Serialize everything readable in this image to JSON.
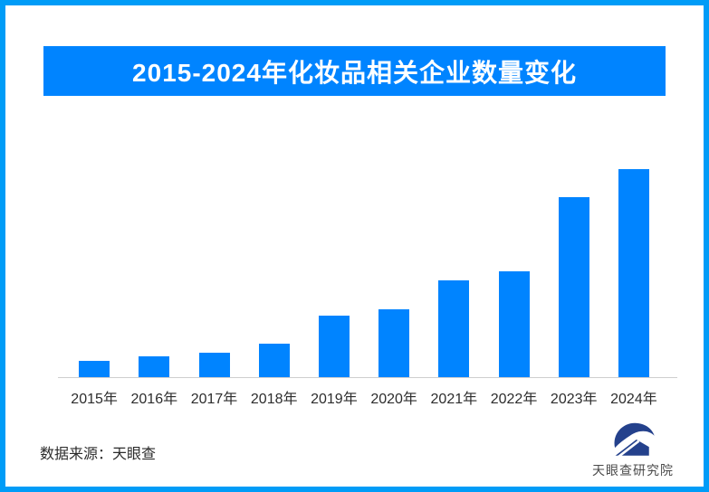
{
  "page": {
    "background": "#ffffff",
    "border_color": "#009CF7"
  },
  "header": {
    "title": "2015-2024年化妆品相关企业数量变化",
    "background": "#0084FF",
    "text_color": "#ffffff"
  },
  "chart_data": {
    "type": "bar",
    "title": "2015-2024年化妆品相关企业数量变化",
    "categories": [
      "2015年",
      "2016年",
      "2017年",
      "2018年",
      "2019年",
      "2020年",
      "2021年",
      "2022年",
      "2023年",
      "2024年"
    ],
    "values": [
      7.9,
      10.0,
      11.9,
      16.2,
      29.6,
      32.7,
      46.5,
      51.0,
      86.5,
      100
    ],
    "values_note": "图中无数值标签和Y轴刻度；数值为按柱形高度以2024年=100估算的相对值",
    "xlabel": "",
    "ylabel": "",
    "ylim": [
      0,
      100
    ],
    "grid": false,
    "legend": false,
    "bar_color": "#0084FF",
    "axis_line_color": "#cfcfcf",
    "tick_label_color": "#2d2d2d"
  },
  "footer": {
    "source_label": "数据来源：天眼查",
    "logo_text": "天眼查研究院",
    "logo_color": "#24418C",
    "logo_text_color": "#4a4a4a"
  }
}
